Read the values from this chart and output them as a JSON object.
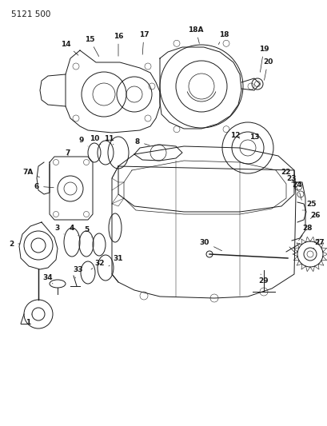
{
  "title": "5121 500",
  "bg_color": "#ffffff",
  "fg_color": "#1a1a1a",
  "fig_width": 4.1,
  "fig_height": 5.33,
  "dpi": 100
}
